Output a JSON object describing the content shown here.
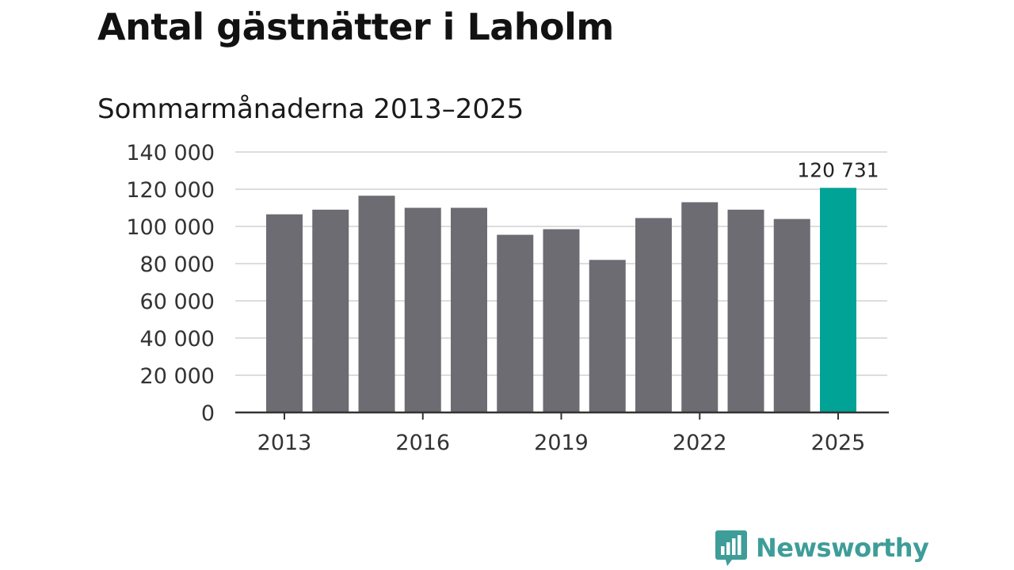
{
  "title": "Antal gästnätter i Laholm",
  "subtitle": "Sommarmånaderna 2013–2025",
  "brand": {
    "name": "Newsworthy",
    "color": "#3e9d98"
  },
  "colors": {
    "bar": "#6d6c72",
    "highlight": "#00a396",
    "grid": "#dddddd",
    "axis": "#333333"
  },
  "chart_data": {
    "type": "bar",
    "categories": [
      "2013",
      "2014",
      "2015",
      "2016",
      "2017",
      "2018",
      "2019",
      "2020",
      "2021",
      "2022",
      "2023",
      "2024",
      "2025"
    ],
    "values": [
      106500,
      109000,
      116500,
      110000,
      110000,
      95500,
      98500,
      82000,
      104500,
      113000,
      109000,
      104000,
      120731
    ],
    "x_tick_labels": [
      "2013",
      "2016",
      "2019",
      "2022",
      "2025"
    ],
    "y_ticks": [
      0,
      20000,
      40000,
      60000,
      80000,
      100000,
      120000,
      140000
    ],
    "y_tick_labels": [
      "0",
      "20 000",
      "40 000",
      "60 000",
      "80 000",
      "100 000",
      "120 000",
      "140 000"
    ],
    "ylim": [
      0,
      140000
    ],
    "highlight_index": 12,
    "annotation": "120 731",
    "xlabel": "",
    "ylabel": "",
    "grid": true
  }
}
